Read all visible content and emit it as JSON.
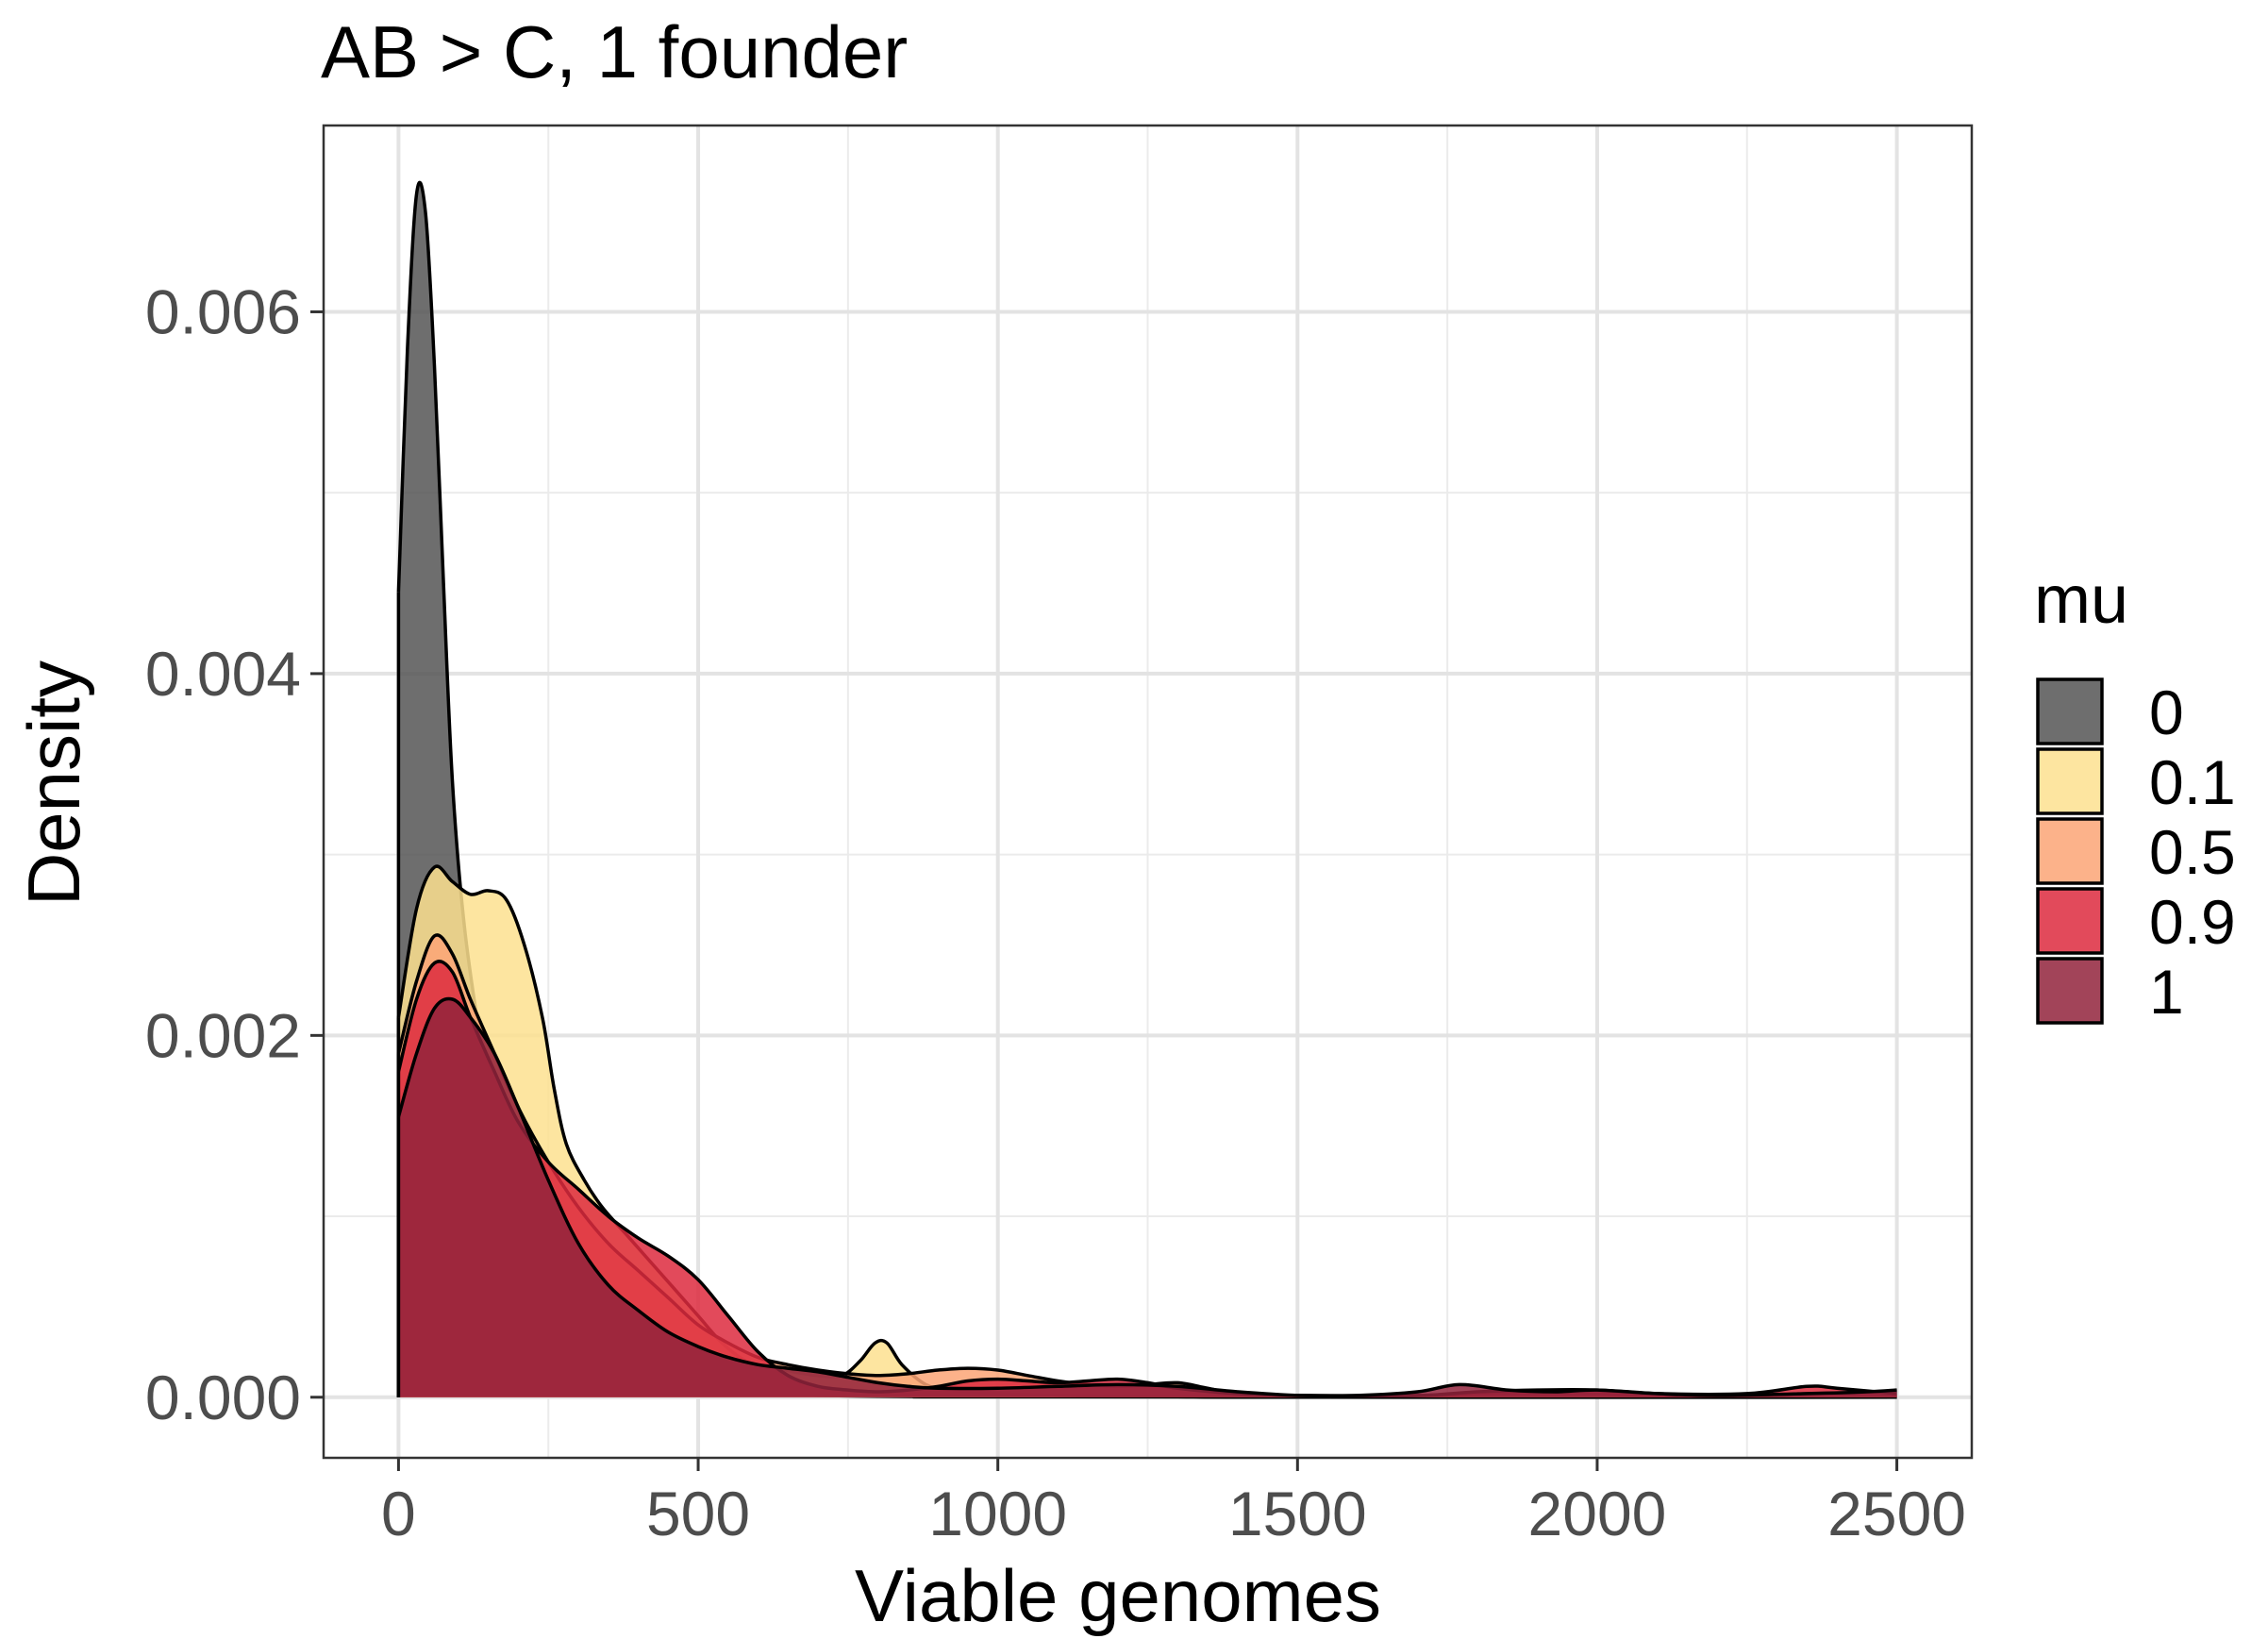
{
  "chart_data": {
    "type": "area",
    "title": "AB > C, 1 founder",
    "xlabel": "Viable genomes",
    "ylabel": "Density",
    "xlim": [
      -125,
      2625
    ],
    "ylim": [
      -0.000335,
      0.00703
    ],
    "x_ticks": [
      0,
      500,
      1000,
      1500,
      2000,
      2500
    ],
    "x_tick_labels": [
      "0",
      "500",
      "1000",
      "1500",
      "2000",
      "2500"
    ],
    "y_ticks": [
      0.0,
      0.002,
      0.004,
      0.006
    ],
    "y_tick_labels": [
      "0.000",
      "0.002",
      "0.004",
      "0.006"
    ],
    "grid": true,
    "legend": {
      "title": "mu",
      "position": "right",
      "entries": [
        "0",
        "0.1",
        "0.5",
        "0.9",
        "1"
      ]
    },
    "series": [
      {
        "name": "0",
        "color": "#555555",
        "points": [
          [
            0,
            0.00445
          ],
          [
            15,
            0.0058
          ],
          [
            30,
            0.00665
          ],
          [
            45,
            0.00655
          ],
          [
            60,
            0.0057
          ],
          [
            75,
            0.0045
          ],
          [
            90,
            0.0034
          ],
          [
            110,
            0.0026
          ],
          [
            140,
            0.0019
          ],
          [
            170,
            0.0013
          ],
          [
            200,
            0.0009
          ],
          [
            240,
            0.00055
          ],
          [
            280,
            0.00035
          ],
          [
            330,
            0.00028
          ],
          [
            380,
            0.00024
          ],
          [
            440,
            0.00015
          ],
          [
            500,
            8e-05
          ],
          [
            560,
            4e-05
          ],
          [
            620,
            2e-05
          ],
          [
            700,
            1e-05
          ],
          [
            800,
            5e-06
          ],
          [
            900,
            3e-06
          ],
          [
            1000,
            2e-06
          ],
          [
            2500,
            0.0
          ]
        ]
      },
      {
        "name": "0.1",
        "color": "#FDE08F",
        "points": [
          [
            0,
            0.0021
          ],
          [
            30,
            0.0027
          ],
          [
            60,
            0.00293
          ],
          [
            90,
            0.00285
          ],
          [
            120,
            0.00278
          ],
          [
            150,
            0.0028
          ],
          [
            180,
            0.00275
          ],
          [
            210,
            0.0025
          ],
          [
            240,
            0.0021
          ],
          [
            260,
            0.0017
          ],
          [
            280,
            0.0014
          ],
          [
            310,
            0.0012
          ],
          [
            340,
            0.00105
          ],
          [
            380,
            0.0009
          ],
          [
            420,
            0.00075
          ],
          [
            460,
            0.0006
          ],
          [
            500,
            0.00045
          ],
          [
            540,
            0.0003
          ],
          [
            580,
            0.0002
          ],
          [
            620,
            0.00017
          ],
          [
            660,
            0.00014
          ],
          [
            700,
            0.00012
          ],
          [
            740,
            0.00012
          ],
          [
            770,
            0.0002
          ],
          [
            795,
            0.0003
          ],
          [
            815,
            0.0003
          ],
          [
            840,
            0.00018
          ],
          [
            880,
            7e-05
          ],
          [
            920,
            4e-05
          ],
          [
            960,
            3e-05
          ],
          [
            1000,
            2e-05
          ],
          [
            1100,
            1e-05
          ],
          [
            1200,
            5e-06
          ],
          [
            1300,
            3e-06
          ],
          [
            1500,
            0.0
          ],
          [
            2500,
            0.0
          ]
        ]
      },
      {
        "name": "0.5",
        "color": "#FCA575",
        "points": [
          [
            0,
            0.0019
          ],
          [
            30,
            0.0023
          ],
          [
            60,
            0.00255
          ],
          [
            90,
            0.00245
          ],
          [
            120,
            0.0022
          ],
          [
            160,
            0.0019
          ],
          [
            200,
            0.0016
          ],
          [
            250,
            0.0013
          ],
          [
            300,
            0.00105
          ],
          [
            350,
            0.00085
          ],
          [
            400,
            0.0007
          ],
          [
            450,
            0.00055
          ],
          [
            500,
            0.0004
          ],
          [
            550,
            0.0003
          ],
          [
            600,
            0.00022
          ],
          [
            650,
            0.00018
          ],
          [
            700,
            0.00015
          ],
          [
            750,
            0.00013
          ],
          [
            800,
            0.00012
          ],
          [
            850,
            0.00013
          ],
          [
            900,
            0.00015
          ],
          [
            950,
            0.00016
          ],
          [
            1000,
            0.00015
          ],
          [
            1050,
            0.00012
          ],
          [
            1100,
            9e-05
          ],
          [
            1150,
            7e-05
          ],
          [
            1200,
            6e-05
          ],
          [
            1250,
            7e-05
          ],
          [
            1300,
            8e-05
          ],
          [
            1350,
            5e-05
          ],
          [
            1400,
            2e-05
          ],
          [
            1500,
            1e-05
          ],
          [
            1700,
            1e-05
          ],
          [
            1800,
            2e-05
          ],
          [
            1900,
            2e-05
          ],
          [
            2000,
            2e-05
          ],
          [
            2100,
            1e-05
          ],
          [
            2300,
            1e-05
          ],
          [
            2400,
            2e-05
          ],
          [
            2500,
            1e-05
          ]
        ]
      },
      {
        "name": "0.9",
        "color": "#DD2A3E",
        "points": [
          [
            0,
            0.0018
          ],
          [
            30,
            0.0022
          ],
          [
            60,
            0.0024
          ],
          [
            90,
            0.00235
          ],
          [
            120,
            0.0021
          ],
          [
            160,
            0.0018
          ],
          [
            200,
            0.00152
          ],
          [
            250,
            0.0013
          ],
          [
            300,
            0.00115
          ],
          [
            350,
            0.001
          ],
          [
            400,
            0.00088
          ],
          [
            450,
            0.00078
          ],
          [
            500,
            0.00065
          ],
          [
            550,
            0.00045
          ],
          [
            600,
            0.00025
          ],
          [
            650,
            0.00012
          ],
          [
            700,
            6e-05
          ],
          [
            750,
            4e-05
          ],
          [
            800,
            3e-05
          ],
          [
            850,
            4e-05
          ],
          [
            900,
            6e-05
          ],
          [
            950,
            9e-05
          ],
          [
            1000,
            0.0001
          ],
          [
            1050,
            9e-05
          ],
          [
            1100,
            8e-05
          ],
          [
            1150,
            9e-05
          ],
          [
            1200,
            0.0001
          ],
          [
            1250,
            8e-05
          ],
          [
            1300,
            5e-05
          ],
          [
            1400,
            2e-05
          ],
          [
            1500,
            1e-05
          ],
          [
            1700,
            1e-05
          ],
          [
            1800,
            3e-05
          ],
          [
            1900,
            4e-05
          ],
          [
            2000,
            4e-05
          ],
          [
            2100,
            2e-05
          ],
          [
            2250,
            2e-05
          ],
          [
            2350,
            6e-05
          ],
          [
            2400,
            5e-05
          ],
          [
            2500,
            2e-05
          ]
        ]
      },
      {
        "name": "1",
        "color": "#92233C",
        "points": [
          [
            0,
            0.00155
          ],
          [
            30,
            0.0019
          ],
          [
            60,
            0.00215
          ],
          [
            90,
            0.0022
          ],
          [
            120,
            0.0021
          ],
          [
            160,
            0.0019
          ],
          [
            200,
            0.0016
          ],
          [
            250,
            0.0012
          ],
          [
            300,
            0.00085
          ],
          [
            350,
            0.00062
          ],
          [
            400,
            0.00048
          ],
          [
            450,
            0.00036
          ],
          [
            500,
            0.00028
          ],
          [
            550,
            0.00022
          ],
          [
            600,
            0.00018
          ],
          [
            650,
            0.00016
          ],
          [
            700,
            0.00014
          ],
          [
            750,
            0.00011
          ],
          [
            800,
            8e-05
          ],
          [
            850,
            6e-05
          ],
          [
            900,
            5e-05
          ],
          [
            1000,
            5e-05
          ],
          [
            1100,
            6e-05
          ],
          [
            1200,
            7e-05
          ],
          [
            1300,
            6e-05
          ],
          [
            1400,
            3e-05
          ],
          [
            1500,
            1e-05
          ],
          [
            1600,
            1e-05
          ],
          [
            1700,
            3e-05
          ],
          [
            1770,
            7e-05
          ],
          [
            1850,
            4e-05
          ],
          [
            1930,
            3e-05
          ],
          [
            2000,
            4e-05
          ],
          [
            2100,
            2e-05
          ],
          [
            2200,
            1e-05
          ],
          [
            2350,
            2e-05
          ],
          [
            2450,
            3e-05
          ],
          [
            2500,
            4e-05
          ]
        ]
      }
    ]
  }
}
